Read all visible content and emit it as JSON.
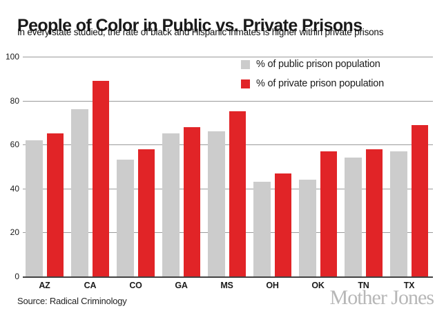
{
  "header": {
    "title": "People of Color in Public vs. Private Prisons",
    "subtitle": "In every state studied, the rate of black and Hispanic inmates is higher within private prisons"
  },
  "chart_data": {
    "type": "bar",
    "title": "People of Color in Public vs. Private Prisons",
    "subtitle": "In every state studied, the rate of black and Hispanic inmates is higher within private prisons",
    "categories": [
      "AZ",
      "CA",
      "CO",
      "GA",
      "MS",
      "OH",
      "OK",
      "TN",
      "TX"
    ],
    "series": [
      {
        "name": "% of public prison population",
        "color": "#cccccc",
        "values": [
          62,
          76,
          53,
          65,
          66,
          43,
          44,
          54,
          57
        ]
      },
      {
        "name": "% of private prison population",
        "color": "#e12427",
        "values": [
          65,
          89,
          58,
          68,
          75,
          47,
          57,
          58,
          69
        ]
      }
    ],
    "xlabel": "",
    "ylabel": "",
    "ylim": [
      0,
      100
    ],
    "yticks": [
      0,
      20,
      40,
      60,
      80,
      100
    ],
    "grid": true,
    "legend_position": "top-right",
    "colors": {
      "public_bar": "#cccccc",
      "private_bar": "#e12427",
      "gridline": "#9a9a9a",
      "baseline": "#414141",
      "text": "#1a1a1a",
      "brand": "#b7b7b7"
    }
  },
  "footer": {
    "source": "Source: Radical Criminology",
    "brand": "Mother Jones"
  }
}
